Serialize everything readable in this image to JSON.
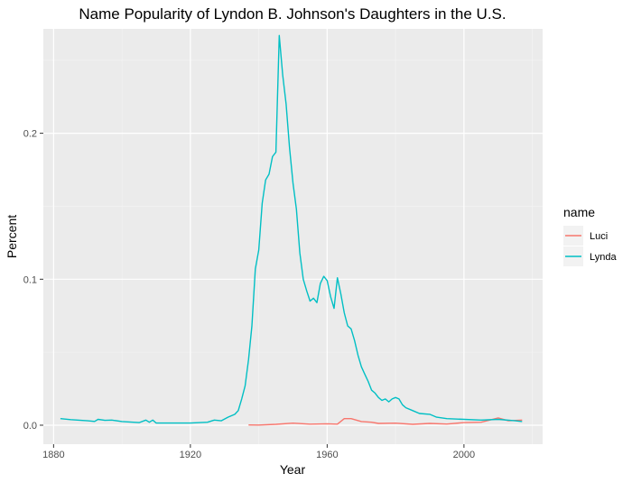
{
  "chart_data": {
    "type": "line",
    "title": "Name Popularity of Lyndon B. Johnson's Daughters in the U.S.",
    "xlabel": "Year",
    "ylabel": "Percent",
    "xlim": [
      1877,
      2023
    ],
    "ylim": [
      -0.013,
      0.2715
    ],
    "x_ticks": [
      1880,
      1920,
      1960,
      2000
    ],
    "x_tick_labels": [
      "1880",
      "1920",
      "1960",
      "2000"
    ],
    "y_ticks": [
      0.0,
      0.1,
      0.2
    ],
    "y_tick_labels": [
      "0.0",
      "0.1",
      "0.2"
    ],
    "grid": true,
    "legend": {
      "title": "name",
      "position": "right"
    },
    "series": [
      {
        "name": "Luci",
        "color": "#F8766D",
        "x": [
          1937,
          1940,
          1945,
          1950,
          1955,
          1960,
          1963,
          1965,
          1967,
          1970,
          1973,
          1975,
          1980,
          1985,
          1990,
          1995,
          2000,
          2005,
          2010,
          2013,
          2017
        ],
        "y": [
          0.0002,
          0.0001,
          0.0006,
          0.0014,
          0.0007,
          0.001,
          0.0007,
          0.0045,
          0.0045,
          0.0025,
          0.002,
          0.0012,
          0.0014,
          0.0006,
          0.0012,
          0.0008,
          0.0018,
          0.002,
          0.005,
          0.003,
          0.0035
        ]
      },
      {
        "name": "Lynda",
        "color": "#00BFC4",
        "x": [
          1882,
          1885,
          1890,
          1892,
          1893,
          1895,
          1897,
          1900,
          1905,
          1907,
          1908,
          1909,
          1910,
          1915,
          1920,
          1925,
          1927,
          1929,
          1931,
          1933,
          1934,
          1935,
          1936,
          1937,
          1938,
          1939,
          1940,
          1941,
          1942,
          1943,
          1944,
          1945,
          1946,
          1947,
          1948,
          1949,
          1950,
          1951,
          1952,
          1953,
          1954,
          1955,
          1956,
          1957,
          1958,
          1959,
          1960,
          1961,
          1962,
          1963,
          1964,
          1965,
          1966,
          1967,
          1968,
          1969,
          1970,
          1971,
          1972,
          1973,
          1974,
          1975,
          1976,
          1977,
          1978,
          1979,
          1980,
          1981,
          1982,
          1983,
          1985,
          1987,
          1990,
          1992,
          1995,
          2000,
          2005,
          2010,
          2015,
          2017
        ],
        "y": [
          0.0045,
          0.0038,
          0.003,
          0.0026,
          0.004,
          0.0033,
          0.0035,
          0.0025,
          0.0018,
          0.0035,
          0.002,
          0.0035,
          0.0015,
          0.0015,
          0.0015,
          0.002,
          0.0035,
          0.003,
          0.0055,
          0.0075,
          0.01,
          0.018,
          0.027,
          0.045,
          0.068,
          0.107,
          0.12,
          0.152,
          0.168,
          0.172,
          0.184,
          0.187,
          0.267,
          0.24,
          0.22,
          0.19,
          0.166,
          0.148,
          0.118,
          0.1,
          0.092,
          0.085,
          0.087,
          0.084,
          0.097,
          0.102,
          0.099,
          0.088,
          0.08,
          0.101,
          0.09,
          0.077,
          0.068,
          0.066,
          0.058,
          0.048,
          0.04,
          0.035,
          0.03,
          0.024,
          0.022,
          0.019,
          0.017,
          0.018,
          0.016,
          0.018,
          0.019,
          0.018,
          0.014,
          0.012,
          0.01,
          0.008,
          0.0075,
          0.0055,
          0.0045,
          0.004,
          0.0035,
          0.004,
          0.003,
          0.0025
        ]
      }
    ]
  }
}
